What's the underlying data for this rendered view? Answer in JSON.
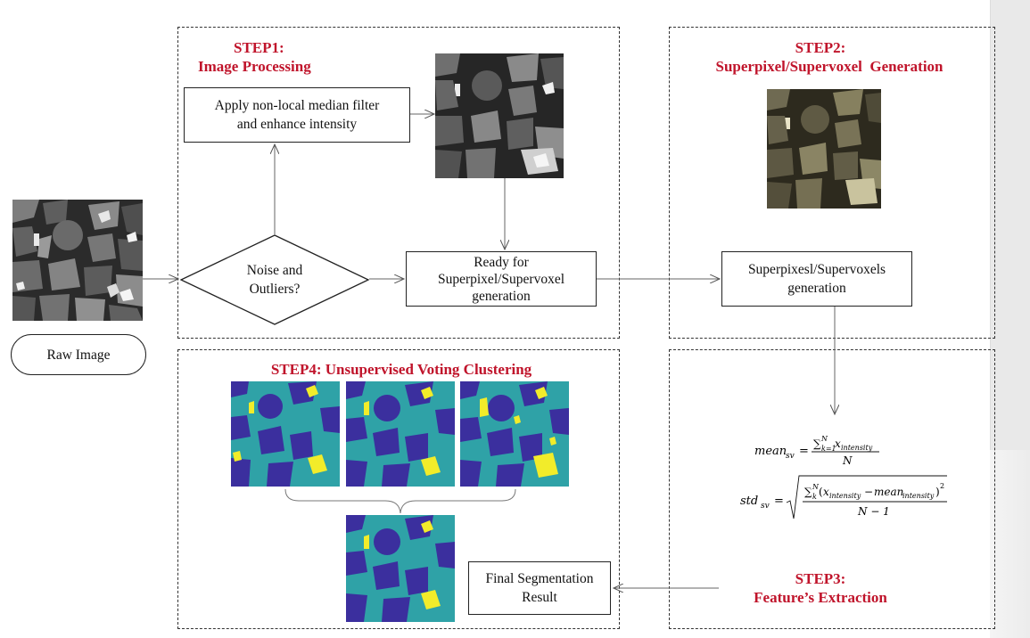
{
  "steps": {
    "step1": {
      "heading": "STEP1:",
      "subheading": "Image Processing"
    },
    "step2": {
      "heading": "STEP2:",
      "subheading": "Superpixel/Supervoxel  Generation"
    },
    "step3": {
      "heading": "STEP3:",
      "subheading": "Feature’s Extraction"
    },
    "step4": {
      "title": "STEP4: Unsupervised Voting Clustering"
    }
  },
  "nodes": {
    "raw_image": "Raw Image",
    "apply_filter": "Apply non-local median filter\nand enhance intensity",
    "noise_decision": "Noise and\nOutliers?",
    "ready": "Ready for\nSuperpixel/Supervoxel\ngeneration",
    "superpixel_gen": "Superpixesl/Supervoxels\ngeneration",
    "final_result": "Final Segmentation\nResult"
  },
  "formulas": {
    "mean_lhs": "mean",
    "mean_sub": "sv",
    "mean_num": "∑",
    "mean_den": "N",
    "std_lhs": "std",
    "std_sub": "sv",
    "std_den": "N − 1"
  },
  "colors": {
    "step_red": "#c0142b",
    "cluster_teal": "#2fa2a7",
    "cluster_navy": "#3b2f9e",
    "cluster_yellow": "#f2ec2a"
  }
}
